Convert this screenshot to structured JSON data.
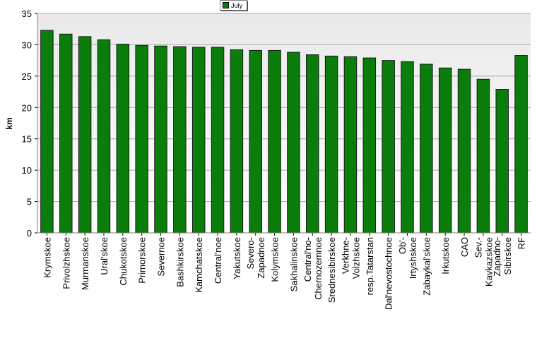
{
  "chart_data": {
    "type": "bar",
    "title": "",
    "xlabel": "",
    "ylabel": "km",
    "ylim": [
      0,
      35
    ],
    "yticks": [
      0,
      5,
      10,
      15,
      20,
      25,
      30,
      35
    ],
    "grid": true,
    "legend_placement": "top-center",
    "colors": {
      "bar": "#0b7d0b",
      "bar_border": "#1a1a1a",
      "plot_bg": "#e8e8e8",
      "plot_bg_bottom": "#ffffff",
      "grid": "#a8a8a8"
    },
    "categories": [
      "Krymskoe",
      "Privolzhskoe",
      "Murmanskoe",
      "Ural'skoe",
      "Chukotskoe",
      "Primorskoe",
      "Severnoe",
      "Bashkirskoe",
      "Kamchatskoe",
      "Central'noe",
      "Yakutskoe",
      "Severo- Zapadnoe",
      "Kolymskoe",
      "Sakhalinskoe",
      "Central'no- Chernozemnoe",
      "Srednesibirskoe",
      "Verkhne- Volzhskoe",
      "resp.Tatarstan",
      "Dal'nevostochnoe",
      "Ob'- Irtyshskoe",
      "Zabaykal'skoe",
      "Irkutskoe",
      "CAO",
      "Sev.- Kavkazskoe",
      "Zapadno- Sibirskoe",
      "RF"
    ],
    "series": [
      {
        "name": "July",
        "values": [
          32.3,
          31.7,
          31.3,
          30.8,
          30.1,
          29.9,
          29.8,
          29.7,
          29.6,
          29.6,
          29.2,
          29.1,
          29.1,
          28.8,
          28.4,
          28.2,
          28.1,
          27.9,
          27.5,
          27.3,
          26.9,
          26.3,
          26.1,
          24.5,
          22.9,
          28.3
        ]
      }
    ]
  }
}
